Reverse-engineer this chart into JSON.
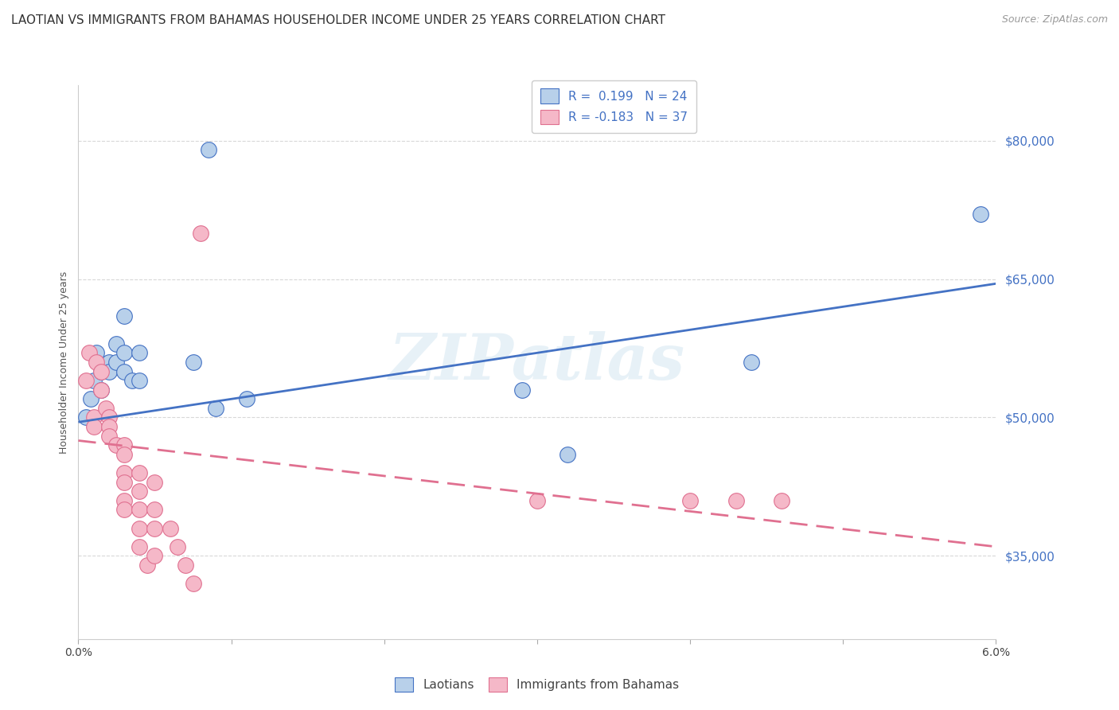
{
  "title": "LAOTIAN VS IMMIGRANTS FROM BAHAMAS HOUSEHOLDER INCOME UNDER 25 YEARS CORRELATION CHART",
  "source": "Source: ZipAtlas.com",
  "ylabel": "Householder Income Under 25 years",
  "legend_label1": "R =  0.199   N = 24",
  "legend_label2": "R = -0.183   N = 37",
  "legend_bottom1": "Laotians",
  "legend_bottom2": "Immigrants from Bahamas",
  "ytick_labels": [
    "$35,000",
    "$50,000",
    "$65,000",
    "$80,000"
  ],
  "ytick_values": [
    35000,
    50000,
    65000,
    80000
  ],
  "xmin": 0.0,
  "xmax": 0.06,
  "ymin": 26000,
  "ymax": 86000,
  "color_blue": "#b8d0ea",
  "color_pink": "#f5b8c8",
  "line_blue": "#4472c4",
  "line_pink": "#e07090",
  "title_fontsize": 11,
  "source_fontsize": 9,
  "axis_label_fontsize": 9,
  "tick_fontsize": 10,
  "laotian_x": [
    0.0005,
    0.0008,
    0.001,
    0.0012,
    0.0015,
    0.0015,
    0.002,
    0.002,
    0.0025,
    0.0025,
    0.003,
    0.003,
    0.003,
    0.0035,
    0.004,
    0.004,
    0.0075,
    0.0085,
    0.009,
    0.011,
    0.029,
    0.032,
    0.044,
    0.059
  ],
  "laotian_y": [
    50000,
    52000,
    54000,
    57000,
    55000,
    53000,
    56000,
    55000,
    58000,
    56000,
    61000,
    57000,
    55000,
    54000,
    57000,
    54000,
    56000,
    79000,
    51000,
    52000,
    53000,
    46000,
    56000,
    72000
  ],
  "bahamas_x": [
    0.0005,
    0.0007,
    0.001,
    0.001,
    0.0012,
    0.0015,
    0.0015,
    0.0018,
    0.002,
    0.002,
    0.002,
    0.0025,
    0.003,
    0.003,
    0.003,
    0.003,
    0.003,
    0.003,
    0.004,
    0.004,
    0.004,
    0.004,
    0.004,
    0.0045,
    0.005,
    0.005,
    0.005,
    0.005,
    0.006,
    0.0065,
    0.007,
    0.0075,
    0.008,
    0.03,
    0.04,
    0.043,
    0.046
  ],
  "bahamas_y": [
    54000,
    57000,
    50000,
    49000,
    56000,
    55000,
    53000,
    51000,
    50000,
    49000,
    48000,
    47000,
    47000,
    46000,
    44000,
    43000,
    41000,
    40000,
    44000,
    42000,
    40000,
    38000,
    36000,
    34000,
    43000,
    40000,
    38000,
    35000,
    38000,
    36000,
    34000,
    32000,
    70000,
    41000,
    41000,
    41000,
    41000
  ],
  "blue_line_x": [
    0.0,
    0.06
  ],
  "blue_line_y": [
    49500,
    64500
  ],
  "pink_line_x": [
    0.0,
    0.06
  ],
  "pink_line_y": [
    47500,
    36000
  ],
  "watermark": "ZIPatlas",
  "background_color": "#ffffff",
  "grid_color": "#d8d8d8"
}
